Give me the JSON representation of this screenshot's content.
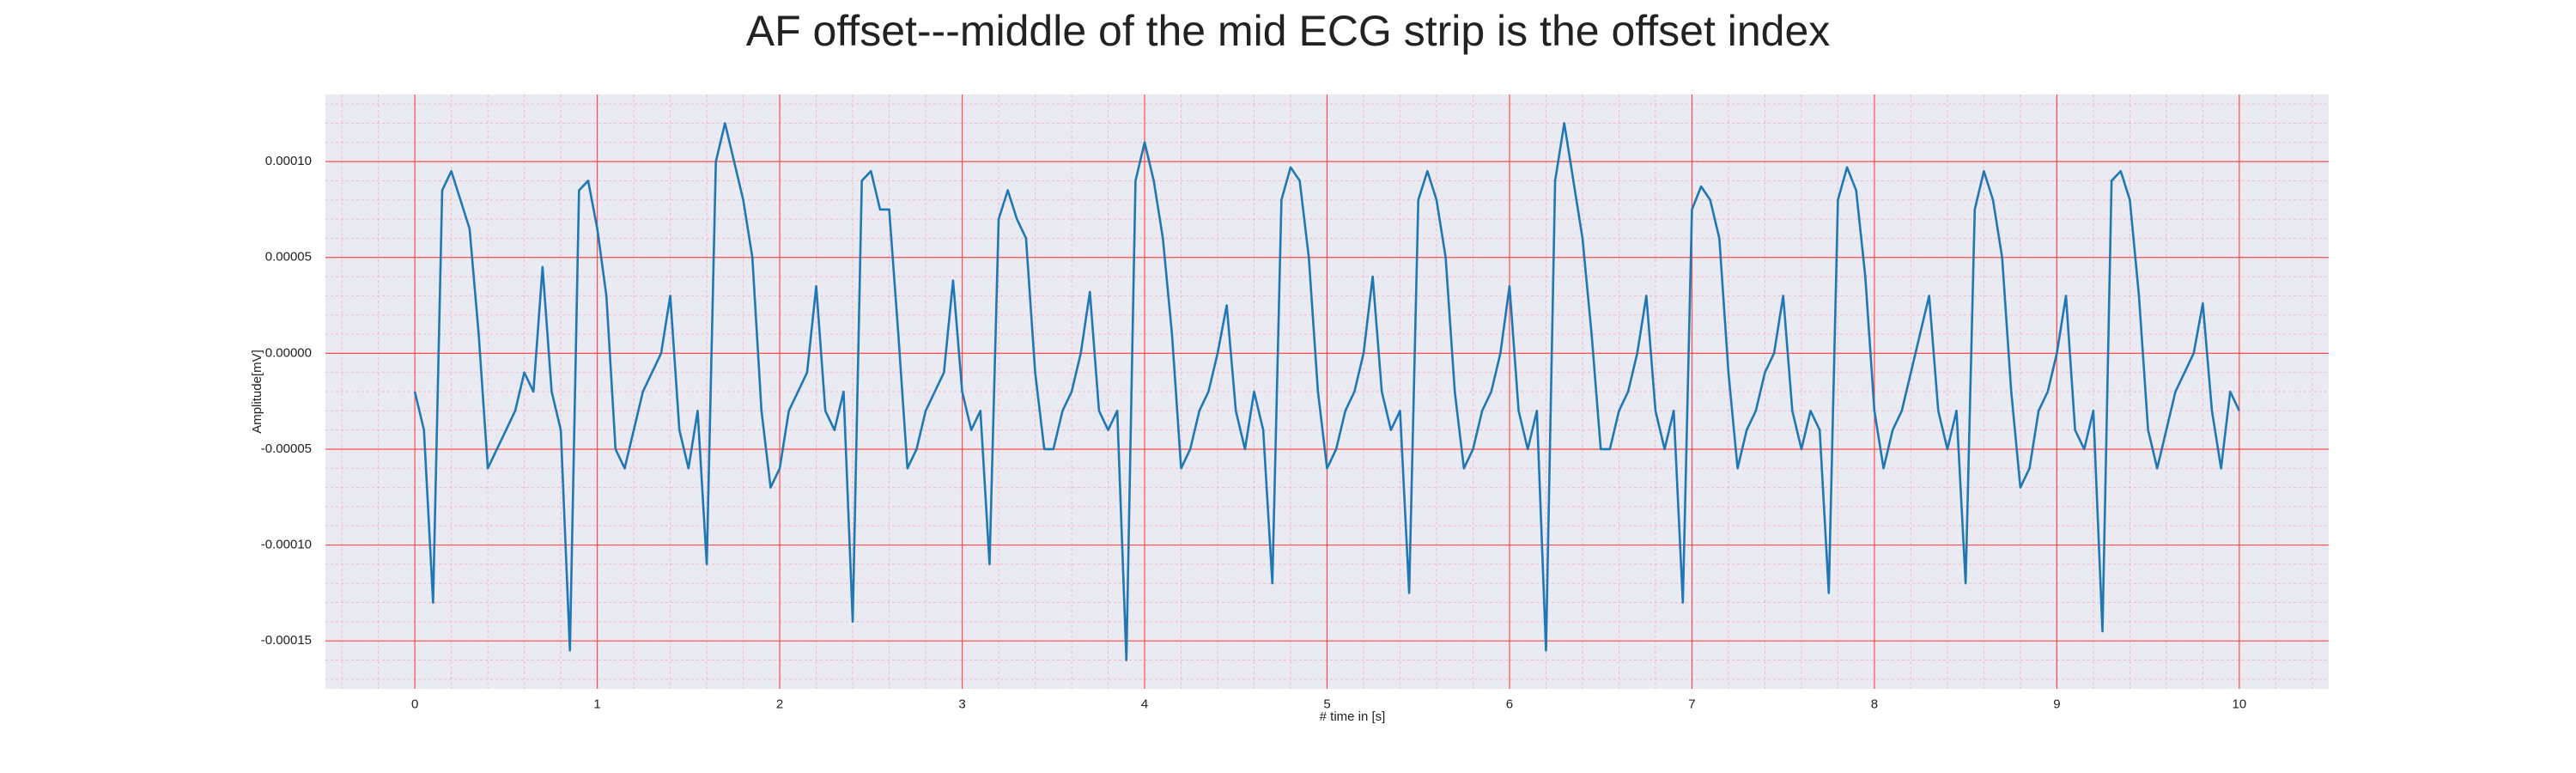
{
  "chart_data": {
    "type": "line",
    "title": "AF offset---middle of the mid ECG strip is the offset index",
    "xlabel": "# time in [s]",
    "ylabel": "Amplitude[mV]",
    "color": "#1f77b4",
    "grid": true,
    "minor_grid": true,
    "xlim": [
      -0.49,
      10.49
    ],
    "ylim": [
      -0.000175,
      0.000135
    ],
    "xticks": [
      0,
      1,
      2,
      3,
      4,
      5,
      6,
      7,
      8,
      9,
      10
    ],
    "yticks": [
      {
        "value": -0.00015,
        "label": "-0.00015"
      },
      {
        "value": -0.0001,
        "label": "-0.00010"
      },
      {
        "value": -5e-05,
        "label": "-0.00005"
      },
      {
        "value": 0,
        "label": "0.00000"
      },
      {
        "value": 5e-05,
        "label": "0.00005"
      },
      {
        "value": 0.0001,
        "label": "0.00010"
      }
    ],
    "x": [
      0,
      0.05,
      0.1,
      0.15,
      0.2,
      0.25,
      0.3,
      0.35,
      0.4,
      0.45,
      0.5,
      0.55,
      0.6,
      0.65,
      0.7,
      0.75,
      0.8,
      0.85,
      0.9,
      0.95,
      1,
      1.05,
      1.1,
      1.15,
      1.2,
      1.25,
      1.3,
      1.35,
      1.4,
      1.45,
      1.5,
      1.55,
      1.6,
      1.65,
      1.7,
      1.75,
      1.8,
      1.85,
      1.9,
      1.95,
      2,
      2.05,
      2.1,
      2.15,
      2.2,
      2.25,
      2.3,
      2.35,
      2.4,
      2.45,
      2.5,
      2.55,
      2.6,
      2.65,
      2.7,
      2.75,
      2.8,
      2.85,
      2.9,
      2.95,
      3,
      3.05,
      3.1,
      3.15,
      3.2,
      3.25,
      3.3,
      3.35,
      3.4,
      3.45,
      3.5,
      3.55,
      3.6,
      3.65,
      3.7,
      3.75,
      3.8,
      3.85,
      3.9,
      3.95,
      4,
      4.05,
      4.1,
      4.15,
      4.2,
      4.25,
      4.3,
      4.35,
      4.4,
      4.45,
      4.5,
      4.55,
      4.6,
      4.65,
      4.7,
      4.75,
      4.8,
      4.85,
      4.9,
      4.95,
      5,
      5.05,
      5.1,
      5.15,
      5.2,
      5.25,
      5.3,
      5.35,
      5.4,
      5.45,
      5.5,
      5.55,
      5.6,
      5.65,
      5.7,
      5.75,
      5.8,
      5.85,
      5.9,
      5.95,
      6,
      6.05,
      6.1,
      6.15,
      6.2,
      6.25,
      6.3,
      6.35,
      6.4,
      6.45,
      6.5,
      6.55,
      6.6,
      6.65,
      6.7,
      6.75,
      6.8,
      6.85,
      6.9,
      6.95,
      7,
      7.05,
      7.1,
      7.15,
      7.2,
      7.25,
      7.3,
      7.35,
      7.4,
      7.45,
      7.5,
      7.55,
      7.6,
      7.65,
      7.7,
      7.75,
      7.8,
      7.85,
      7.9,
      7.95,
      8,
      8.05,
      8.1,
      8.15,
      8.2,
      8.25,
      8.3,
      8.35,
      8.4,
      8.45,
      8.5,
      8.55,
      8.6,
      8.65,
      8.7,
      8.75,
      8.8,
      8.85,
      8.9,
      8.95,
      9,
      9.05,
      9.1,
      9.15,
      9.2,
      9.25,
      9.3,
      9.35,
      9.4,
      9.45,
      9.5,
      9.55,
      9.6,
      9.65,
      9.7,
      9.75,
      9.8,
      9.85,
      9.9,
      9.95,
      10
    ],
    "values": [
      -2e-05,
      -4e-05,
      -0.00013,
      8.5e-05,
      9.5e-05,
      8e-05,
      6.5e-05,
      1e-05,
      -6e-05,
      -5e-05,
      -4e-05,
      -3e-05,
      -1e-05,
      -2e-05,
      4.5e-05,
      -2e-05,
      -4e-05,
      -0.000155,
      8.5e-05,
      9e-05,
      6.5e-05,
      3e-05,
      -5e-05,
      -6e-05,
      -4e-05,
      -2e-05,
      -1e-05,
      0,
      3e-05,
      -4e-05,
      -6e-05,
      -3e-05,
      -0.00011,
      0.0001,
      0.00012,
      0.0001,
      8e-05,
      5e-05,
      -3e-05,
      -7e-05,
      -6e-05,
      -3e-05,
      -2e-05,
      -1e-05,
      3.5e-05,
      -3e-05,
      -4e-05,
      -2e-05,
      -0.00014,
      9e-05,
      9.5e-05,
      7.5e-05,
      7.5e-05,
      1e-05,
      -6e-05,
      -5e-05,
      -3e-05,
      -2e-05,
      -1e-05,
      3.8e-05,
      -2e-05,
      -4e-05,
      -3e-05,
      -0.00011,
      7e-05,
      8.5e-05,
      7e-05,
      6e-05,
      -1e-05,
      -5e-05,
      -5e-05,
      -3e-05,
      -2e-05,
      0,
      3.2e-05,
      -3e-05,
      -4e-05,
      -3e-05,
      -0.00016,
      9e-05,
      0.00011,
      9e-05,
      6e-05,
      1e-05,
      -6e-05,
      -5e-05,
      -3e-05,
      -2e-05,
      0,
      2.5e-05,
      -3e-05,
      -5e-05,
      -2e-05,
      -4e-05,
      -0.00012,
      8e-05,
      9.7e-05,
      9e-05,
      5e-05,
      -2e-05,
      -6e-05,
      -5e-05,
      -3e-05,
      -2e-05,
      0,
      4e-05,
      -2e-05,
      -4e-05,
      -3e-05,
      -0.000125,
      8e-05,
      9.5e-05,
      8e-05,
      5e-05,
      -2e-05,
      -6e-05,
      -5e-05,
      -3e-05,
      -2e-05,
      0,
      3.5e-05,
      -3e-05,
      -5e-05,
      -3e-05,
      -0.000155,
      9e-05,
      0.00012,
      9e-05,
      6e-05,
      1e-05,
      -5e-05,
      -5e-05,
      -3e-05,
      -2e-05,
      0,
      3e-05,
      -3e-05,
      -5e-05,
      -3e-05,
      -0.00013,
      7.5e-05,
      8.7e-05,
      8e-05,
      6e-05,
      -1e-05,
      -6e-05,
      -4e-05,
      -3e-05,
      -1e-05,
      0,
      3e-05,
      -3e-05,
      -5e-05,
      -3e-05,
      -4e-05,
      -0.000125,
      8e-05,
      9.7e-05,
      8.5e-05,
      4e-05,
      -3e-05,
      -6e-05,
      -4e-05,
      -3e-05,
      -1e-05,
      1e-05,
      3e-05,
      -3e-05,
      -5e-05,
      -3e-05,
      -0.00012,
      7.5e-05,
      9.5e-05,
      8e-05,
      5e-05,
      -2e-05,
      -7e-05,
      -6e-05,
      -3e-05,
      -2e-05,
      0,
      3e-05,
      -4e-05,
      -5e-05,
      -3e-05,
      -0.000145,
      9e-05,
      9.5e-05,
      8e-05,
      3e-05,
      -4e-05,
      -6e-05,
      -4e-05,
      -2e-05,
      -1e-05,
      0,
      2.6e-05,
      -3e-05,
      -6e-05,
      -2e-05,
      -3e-05
    ]
  }
}
